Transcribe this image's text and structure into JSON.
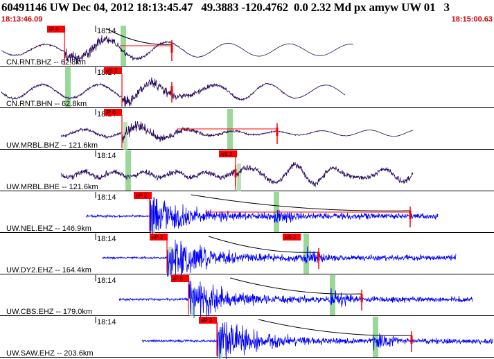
{
  "header": {
    "title": "60491146 UW Dec 04, 2012 18:13:45.47   49.3883 -120.4762  0.0 2.32 Md px amyw UW 01   3",
    "start_time": "18:13:46.09",
    "end_time": "18:15:00.63"
  },
  "colors": {
    "high_gain": "#2a0a5e",
    "short_period": "#0000ff",
    "pick": "#ff0000",
    "window": "#9ad89a",
    "moveout": "#000000"
  },
  "traces": [
    {
      "label": "CN.RNT.BHZ -- 62.8km",
      "tick": "18:14",
      "pick": "iP 0",
      "phase": "P",
      "color": "high_gain"
    },
    {
      "label": "CN.RNT.BHN -- 62.8km",
      "tick": "18:14",
      "pick": "eS 2",
      "phase": "S",
      "color": "high_gain"
    },
    {
      "label": "UW.MRBL.BHZ -- 121.6km",
      "tick": "18:14",
      "pick": "iP 0",
      "phase": "P",
      "color": "high_gain"
    },
    {
      "label": "UW.MRBL.BHE -- 121.6km",
      "tick": "18:14",
      "pick": "eS 2",
      "phase": "S",
      "color": "high_gain"
    },
    {
      "label": "UW.NEL.EHZ -- 146.9km",
      "tick": "18:14",
      "pick": "eP 2",
      "phase": "P",
      "color": "short_period"
    },
    {
      "label": "UW.DY2.EHZ -- 164.4km",
      "tick": "18:14",
      "pick": "eP 2",
      "phase": "P",
      "second_pick": "eS 2",
      "color": "short_period"
    },
    {
      "label": "UW.CBS.EHZ -- 179.0km",
      "tick": "18:14",
      "pick": "iP 0",
      "phase": "P",
      "color": "short_period"
    },
    {
      "label": "UW.SAW.EHZ -- 203.6km",
      "tick": "18:14",
      "pick": "eP 2",
      "phase": "P",
      "color": "short_period"
    }
  ]
}
